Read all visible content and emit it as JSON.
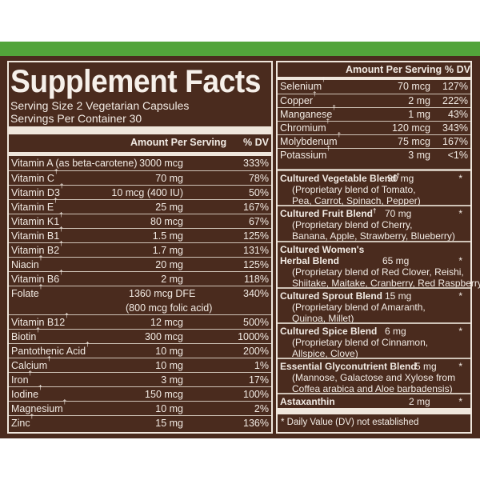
{
  "title": "Supplement Facts",
  "serving_size": "Serving Size 2 Vegetarian Capsules",
  "servings_per_container": "Servings Per Container 30",
  "headers": {
    "amount": "Amount Per Serving",
    "dv": "% DV"
  },
  "left_rows": [
    {
      "name": "Vitamin A (as beta-carotene)",
      "mark": "",
      "amount": "3000 mcg",
      "dv": "333%"
    },
    {
      "name": "Vitamin C",
      "mark": "†",
      "amount": "70 mg",
      "dv": "78%"
    },
    {
      "name": "Vitamin D3",
      "mark": "†",
      "amount": "10 mcg (400 IU)",
      "dv": "50%"
    },
    {
      "name": "Vitamin E",
      "mark": "†",
      "amount": "25 mg",
      "dv": "167%"
    },
    {
      "name": "Vitamin K1",
      "mark": "†",
      "amount": "80 mcg",
      "dv": "67%"
    },
    {
      "name": "Vitamin B1",
      "mark": "†",
      "amount": "1.5 mg",
      "dv": "125%"
    },
    {
      "name": "Vitamin B2",
      "mark": "†",
      "amount": "1.7 mg",
      "dv": "131%"
    },
    {
      "name": "Niacin",
      "mark": "†",
      "amount": "20 mg",
      "dv": "125%"
    },
    {
      "name": "Vitamin B6",
      "mark": "†",
      "amount": "2 mg",
      "dv": "118%"
    },
    {
      "name": "Folate",
      "mark": "†",
      "amount": "1360 mcg DFE",
      "amount2": "(800 mcg folic acid)",
      "dv": "340%"
    },
    {
      "name": "Vitamin B12",
      "mark": "†",
      "amount": "12 mcg",
      "dv": "500%"
    },
    {
      "name": "Biotin",
      "mark": "†",
      "amount": "300 mcg",
      "dv": "1000%"
    },
    {
      "name": "Pantothenic Acid",
      "mark": "†",
      "amount": "10 mg",
      "dv": "200%"
    },
    {
      "name": "Calcium",
      "mark": "†",
      "amount": "10 mg",
      "dv": "1%"
    },
    {
      "name": "Iron",
      "mark": "†",
      "amount": "3 mg",
      "dv": "17%"
    },
    {
      "name": "Iodine",
      "mark": "†",
      "amount": "150 mcg",
      "dv": "100%"
    },
    {
      "name": "Magnesium",
      "mark": "†",
      "amount": "10 mg",
      "dv": "2%"
    },
    {
      "name": "Zinc",
      "mark": "†",
      "amount": "15 mg",
      "dv": "136%"
    }
  ],
  "right_rows": [
    {
      "name": "Selenium",
      "mark": "†",
      "amount": "70 mcg",
      "dv": "127%"
    },
    {
      "name": "Copper",
      "mark": "†",
      "amount": "2 mg",
      "dv": "222%"
    },
    {
      "name": "Manganese",
      "mark": "†",
      "amount": "1 mg",
      "dv": "43%"
    },
    {
      "name": "Chromium",
      "mark": "†",
      "amount": "120 mcg",
      "dv": "343%"
    },
    {
      "name": "Molybdenum",
      "mark": "†",
      "amount": "75 mcg",
      "dv": "167%"
    },
    {
      "name": "Potassium",
      "mark": "†",
      "amount": "3 mg",
      "dv": "<1%"
    }
  ],
  "blends": [
    {
      "name": "Cultured Vegetable Blend",
      "mark": "†",
      "amount": "90 mg",
      "dv": "*",
      "desc": [
        "(Proprietary blend of Tomato,",
        "Pea, Carrot, Spinach, Pepper)"
      ]
    },
    {
      "name": "Cultured Fruit Blend",
      "mark": "†",
      "amount": "70 mg",
      "dv": "*",
      "desc": [
        "(Proprietary blend of Cherry,",
        "Banana, Apple, Strawberry, Blueberry)"
      ]
    },
    {
      "name": "Cultured Women's",
      "name2": "Herbal Blend",
      "mark": "",
      "amount": "65 mg",
      "dv": "*",
      "desc": [
        "(Proprietary blend of Red Clover, Reishi,",
        "Shiitake, Maitake, Cranberry, Red Raspberry)"
      ]
    },
    {
      "name": "Cultured Sprout Blend",
      "mark": "",
      "amount": "15 mg",
      "dv": "*",
      "desc": [
        "(Proprietary blend of Amaranth,",
        "Quinoa, Millet)"
      ]
    },
    {
      "name": "Cultured Spice Blend",
      "mark": "",
      "amount": "6 mg",
      "dv": "*",
      "desc": [
        "(Proprietary blend of Cinnamon,",
        "Allspice, Clove)"
      ]
    },
    {
      "name": "Essential Glyconutrient Blend",
      "mark": "",
      "amount": "5 mg",
      "dv": "*",
      "desc": [
        "(Mannose, Galactose and Xylose from",
        "Coffea arabica and Aloe barbadensis)"
      ]
    },
    {
      "name": "Astaxanthin",
      "mark": "",
      "amount": "2 mg",
      "dv": "*",
      "desc": []
    }
  ],
  "footnote": "* Daily Value (DV) not established"
}
